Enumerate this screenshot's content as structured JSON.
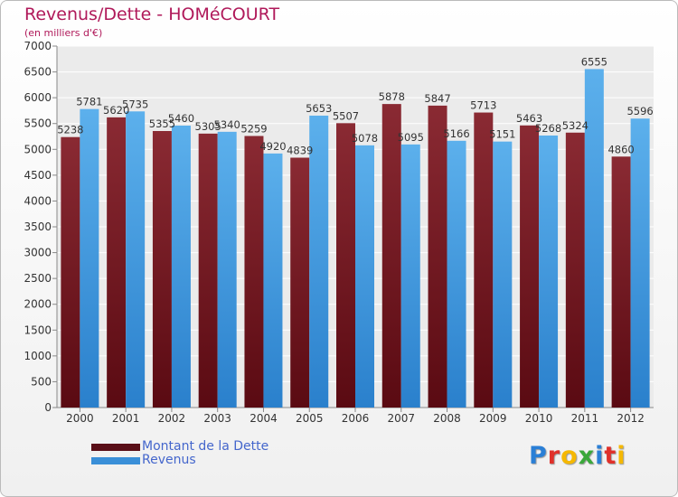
{
  "header": {
    "title": "Revenus/Dette - HOMéCOURT",
    "subtitle": "(en milliers d'€)"
  },
  "logo": {
    "text": "Proxiti",
    "colors": [
      "#2a7fd6",
      "#e0302a",
      "#f5b800",
      "#3aa83a",
      "#2a7fd6",
      "#e0302a",
      "#f5b800"
    ]
  },
  "chart_data": {
    "type": "bar",
    "categories": [
      "2000",
      "2001",
      "2002",
      "2003",
      "2004",
      "2005",
      "2006",
      "2007",
      "2008",
      "2009",
      "2010",
      "2011",
      "2012"
    ],
    "series": [
      {
        "name": "Montant de la Dette",
        "color": "#7a1f28",
        "values": [
          5238,
          5620,
          5355,
          5305,
          5259,
          4839,
          5507,
          5878,
          5847,
          5713,
          5463,
          5324,
          4860
        ],
        "labels": [
          "5238",
          "5620",
          "5355",
          "5305",
          "5259",
          "4839",
          "5507",
          "5878",
          "5847",
          "5713",
          "5463",
          "5324",
          "4860"
        ]
      },
      {
        "name": "Revenus",
        "color": "#4a9fe0",
        "values": [
          5781,
          5735,
          5460,
          5340,
          4920,
          5653,
          5078,
          5095,
          5166,
          5151,
          5268,
          6555,
          5596
        ],
        "labels": [
          "5781",
          "5735",
          "5460",
          "5340",
          "4920",
          "5653",
          "5078",
          "5095",
          "5166",
          "5151",
          "5268",
          "6555",
          "5596"
        ]
      }
    ],
    "yticks": [
      "0",
      "500",
      "1000",
      "1500",
      "2000",
      "2500",
      "3000",
      "3500",
      "4000",
      "4500",
      "5000",
      "5500",
      "6000",
      "6500",
      "7000"
    ],
    "ylim": [
      0,
      7000
    ],
    "grid": true,
    "legend_position": "bottom-left"
  }
}
